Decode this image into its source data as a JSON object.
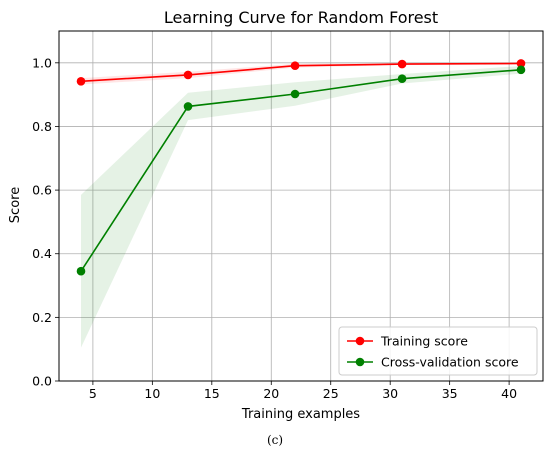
{
  "chart_data": {
    "type": "line",
    "title": "Learning Curve for Random Forest",
    "xlabel": "Training examples",
    "ylabel": "Score",
    "xlim": [
      2.15,
      42.85
    ],
    "ylim": [
      0.0,
      1.1
    ],
    "xticks": [
      "5",
      "10",
      "15",
      "20",
      "25",
      "30",
      "35",
      "40"
    ],
    "yticks": [
      "0.0",
      "0.2",
      "0.4",
      "0.6",
      "0.8",
      "1.0"
    ],
    "grid": true,
    "legend_position": "bottom-right",
    "x": [
      4,
      13,
      22,
      31,
      41
    ],
    "series": [
      {
        "name": "Training score",
        "color": "#ff0000",
        "values": [
          0.942,
          0.962,
          0.991,
          0.996,
          0.998
        ],
        "band_lower": [
          0.932,
          0.952,
          0.985,
          0.993,
          0.996
        ],
        "band_upper": [
          0.952,
          0.972,
          0.997,
          0.999,
          1.0
        ]
      },
      {
        "name": "Cross-validation score",
        "color": "#008000",
        "values": [
          0.345,
          0.863,
          0.902,
          0.95,
          0.978
        ],
        "band_lower": [
          0.105,
          0.82,
          0.865,
          0.935,
          0.966
        ],
        "band_upper": [
          0.585,
          0.906,
          0.939,
          0.965,
          0.99
        ]
      }
    ]
  },
  "caption": "(c)"
}
